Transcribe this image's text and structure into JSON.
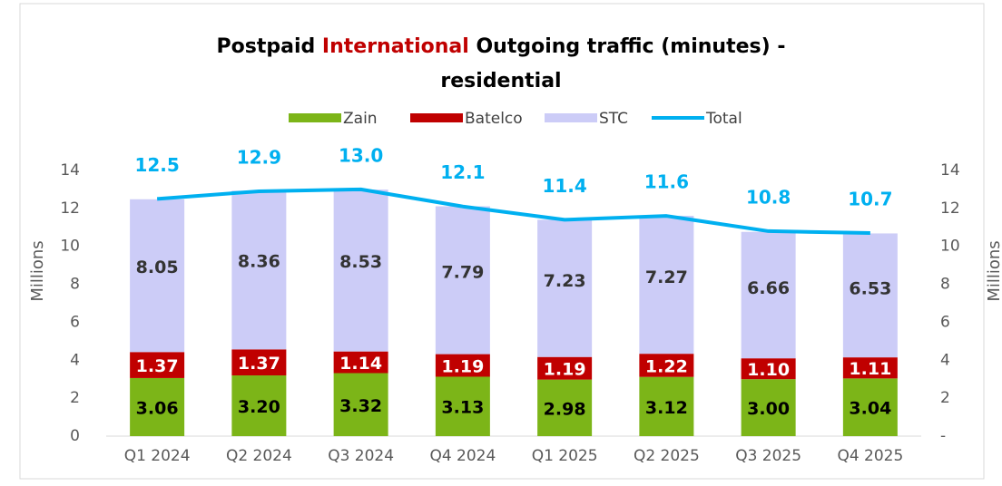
{
  "chart_data": {
    "type": "stacked-bar-line",
    "title": [
      {
        "text": "Postpaid",
        "color": "#000000"
      },
      {
        "text": "International",
        "color": "#c00000"
      },
      {
        "text": "Outgoing traffic (minutes) -",
        "color": "#000000"
      },
      {
        "text": "residential",
        "color": "#000000"
      }
    ],
    "y_label": "Millions",
    "y2_label": "Millions",
    "categories": [
      "Q1 2024",
      "Q2 2024",
      "Q3 2024",
      "Q4 2024",
      "Q1 2025",
      "Q2 2025",
      "Q3 2025",
      "Q4 2025"
    ],
    "series": [
      {
        "name": "Zain",
        "color": "#7cb518",
        "label_color": "#000000",
        "values": [
          3.06,
          3.2,
          3.32,
          3.13,
          2.98,
          3.12,
          3.0,
          3.04
        ],
        "value_labels": [
          "3.06",
          "3.20",
          "3.32",
          "3.13",
          "2.98",
          "3.12",
          "3.00",
          "3.04"
        ]
      },
      {
        "name": "Batelco",
        "color": "#c00000",
        "label_color": "#ffffff",
        "values": [
          1.37,
          1.37,
          1.14,
          1.19,
          1.19,
          1.22,
          1.1,
          1.11
        ],
        "value_labels": [
          "1.37",
          "1.37",
          "1.14",
          "1.19",
          "1.19",
          "1.22",
          "1.10",
          "1.11"
        ]
      },
      {
        "name": "STC",
        "color": "#ccccf7",
        "label_color": "#333333",
        "values": [
          8.05,
          8.36,
          8.53,
          7.79,
          7.23,
          7.27,
          6.66,
          6.53
        ],
        "value_labels": [
          "8.05",
          "8.36",
          "8.53",
          "7.79",
          "7.23",
          "7.27",
          "6.66",
          "6.53"
        ]
      },
      {
        "name": "Total",
        "color": "#00b0f0",
        "axis": "y2",
        "values": [
          12.5,
          12.9,
          13,
          12.1,
          11.4,
          11.6,
          10.8,
          10.7
        ],
        "value_labels": [
          "12.5",
          "12.9",
          "13.0",
          "12.1",
          "11.4",
          "11.6",
          "10.8",
          "10.7"
        ]
      }
    ],
    "ylim": [
      0,
      15
    ],
    "yticks": [
      0,
      2,
      4,
      6,
      8,
      10,
      12,
      14
    ],
    "y2lim": [
      0,
      15
    ],
    "y2ticks": [
      {
        "value": 0,
        "label": "-"
      },
      2,
      4,
      6,
      8,
      10,
      12,
      14
    ],
    "grid": false,
    "legend": "top"
  }
}
